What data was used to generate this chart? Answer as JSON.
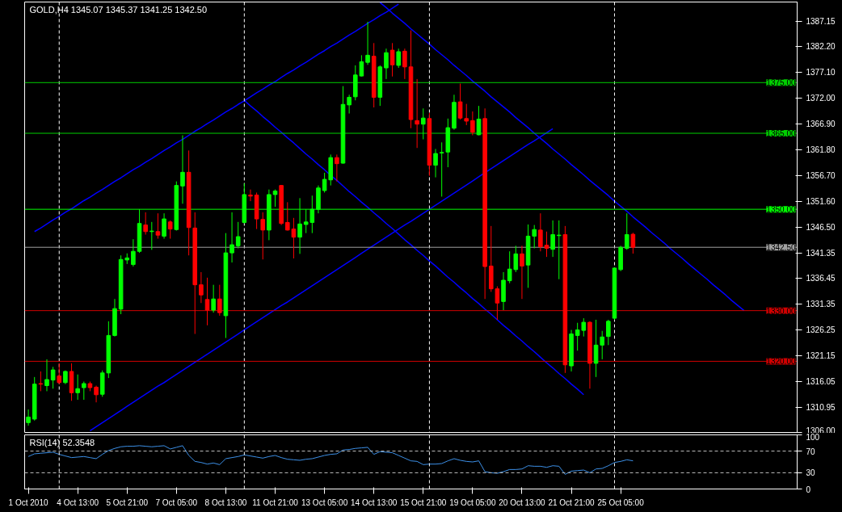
{
  "chart_data": [
    {
      "type": "candlestick",
      "title": "GOLD,H4  1345.07 1345.37 1341.25 1342.50",
      "tick_labels": "y",
      "ylim": [
        1305.8,
        1390.9
      ],
      "yticks": [
        {
          "value": 1387.15,
          "label": "1387.15"
        },
        {
          "value": 1382.2,
          "label": "1382.20"
        },
        {
          "value": 1377.1,
          "label": "1377.10"
        },
        {
          "value": 1372.0,
          "label": "1372.00"
        },
        {
          "value": 1366.9,
          "label": "1366.90"
        },
        {
          "value": 1361.8,
          "label": "1361.80"
        },
        {
          "value": 1356.7,
          "label": "1356.70"
        },
        {
          "value": 1351.6,
          "label": "1351.60"
        },
        {
          "value": 1346.5,
          "label": "1346.50"
        },
        {
          "value": 1341.35,
          "label": "1341.35"
        },
        {
          "value": 1336.45,
          "label": "1336.45"
        },
        {
          "value": 1331.35,
          "label": "1331.35"
        },
        {
          "value": 1326.25,
          "label": "1326.25"
        },
        {
          "value": 1321.15,
          "label": "1321.15"
        },
        {
          "value": 1316.05,
          "label": "1316.05"
        },
        {
          "value": 1310.95,
          "label": "1310.95"
        },
        {
          "value": 1306.0,
          "label": "1306.00"
        }
      ],
      "categories": [
        null,
        null,
        null,
        null,
        null,
        null,
        null,
        null,
        null,
        null,
        null,
        null,
        null,
        null,
        null,
        null,
        null,
        null,
        null,
        null,
        null,
        null,
        null,
        null,
        null,
        null,
        null,
        null,
        null,
        null,
        null,
        null,
        null,
        null,
        null,
        null,
        null,
        null,
        null,
        null,
        null,
        null,
        null,
        null,
        null,
        null,
        null,
        null,
        null,
        null,
        null,
        null,
        null,
        null,
        null,
        null,
        null,
        null,
        null,
        null,
        null,
        null,
        null,
        null,
        null,
        null,
        null,
        null,
        null,
        null,
        null,
        null,
        null,
        null,
        null,
        null,
        null,
        null,
        null,
        null,
        null,
        null,
        null,
        null,
        null,
        null,
        null,
        null,
        null,
        null,
        null,
        null,
        null,
        null,
        null,
        null,
        null,
        null,
        null,
        null,
        null,
        null,
        null,
        null,
        null,
        null,
        null,
        null,
        null,
        null,
        null,
        null,
        null,
        null,
        null,
        null,
        null,
        null,
        null,
        null,
        null,
        null,
        null,
        null,
        null
      ],
      "ohlc": [
        [
          1307.9,
          1310.5,
          1307.3,
          1309.0
        ],
        [
          1308.6,
          1316.9,
          1308.3,
          1315.5
        ],
        [
          1315.6,
          1318.0,
          1314.1,
          1315.5
        ],
        [
          1315.2,
          1320.4,
          1314.1,
          1316.4
        ],
        [
          1316.3,
          1318.9,
          1314.6,
          1318.3
        ],
        [
          1317.1,
          1319.6,
          1315.5,
          1315.8
        ],
        [
          1315.8,
          1318.2,
          1315.5,
          1318.0
        ],
        [
          1318.0,
          1319.6,
          1312.2,
          1313.8
        ],
        [
          1313.8,
          1317.4,
          1312.4,
          1314.6
        ],
        [
          1314.8,
          1316.0,
          1312.4,
          1315.6
        ],
        [
          1315.6,
          1316.0,
          1314.1,
          1314.8
        ],
        [
          1314.9,
          1315.2,
          1311.9,
          1313.4
        ],
        [
          1313.5,
          1318.2,
          1313.0,
          1317.7
        ],
        [
          1317.7,
          1327.9,
          1316.7,
          1325.1
        ],
        [
          1325.1,
          1332.3,
          1324.9,
          1330.4
        ],
        [
          1330.3,
          1340.9,
          1329.3,
          1340.1
        ],
        [
          1340.0,
          1341.3,
          1339.2,
          1340.4
        ],
        [
          1339.1,
          1344.1,
          1338.7,
          1341.7
        ],
        [
          1341.7,
          1350.0,
          1341.4,
          1347.2
        ],
        [
          1346.9,
          1349.4,
          1345.0,
          1345.6
        ],
        [
          1345.6,
          1347.5,
          1342.0,
          1345.7
        ],
        [
          1345.6,
          1349.2,
          1344.2,
          1344.9
        ],
        [
          1344.7,
          1349.2,
          1344.2,
          1348.1
        ],
        [
          1347.5,
          1347.8,
          1344.2,
          1346.1
        ],
        [
          1346.0,
          1355.5,
          1345.8,
          1354.7
        ],
        [
          1354.6,
          1364.6,
          1351.1,
          1357.3
        ],
        [
          1357.3,
          1361.6,
          1340.9,
          1346.4
        ],
        [
          1346.3,
          1349.4,
          1325.4,
          1335.1
        ],
        [
          1335.1,
          1337.6,
          1331.5,
          1333.1
        ],
        [
          1332.2,
          1336.5,
          1327.1,
          1330.1
        ],
        [
          1330.1,
          1335.1,
          1329.6,
          1332.3
        ],
        [
          1332.3,
          1335.1,
          1329.0,
          1329.6
        ],
        [
          1329.0,
          1345.3,
          1324.6,
          1341.4
        ],
        [
          1341.4,
          1349.4,
          1339.5,
          1343.0
        ],
        [
          1342.8,
          1347.5,
          1342.3,
          1344.6
        ],
        [
          1347.4,
          1355.1,
          1347.2,
          1352.9
        ],
        [
          1352.8,
          1353.9,
          1351.6,
          1352.6
        ],
        [
          1352.8,
          1353.3,
          1346.1,
          1348.1
        ],
        [
          1348.0,
          1349.4,
          1340.1,
          1345.9
        ],
        [
          1345.9,
          1353.9,
          1343.9,
          1352.9
        ],
        [
          1352.9,
          1353.9,
          1350.5,
          1353.6
        ],
        [
          1354.7,
          1354.8,
          1346.9,
          1347.2
        ],
        [
          1347.4,
          1351.4,
          1345.8,
          1345.9
        ],
        [
          1346.1,
          1348.3,
          1340.3,
          1344.5
        ],
        [
          1344.5,
          1352.2,
          1341.2,
          1347.1
        ],
        [
          1347.0,
          1350.0,
          1345.3,
          1347.5
        ],
        [
          1347.4,
          1352.7,
          1345.3,
          1350.0
        ],
        [
          1350.0,
          1354.7,
          1349.2,
          1354.2
        ],
        [
          1353.7,
          1357.2,
          1353.3,
          1355.9
        ],
        [
          1355.8,
          1360.8,
          1354.7,
          1360.2
        ],
        [
          1360.2,
          1360.8,
          1355.5,
          1359.0
        ],
        [
          1359.1,
          1374.3,
          1359.0,
          1370.7
        ],
        [
          1370.6,
          1372.6,
          1368.9,
          1372.1
        ],
        [
          1372.2,
          1378.4,
          1371.5,
          1376.5
        ],
        [
          1376.3,
          1380.4,
          1376.2,
          1379.1
        ],
        [
          1379.0,
          1387.0,
          1378.5,
          1380.4
        ],
        [
          1380.2,
          1382.8,
          1370.1,
          1372.1
        ],
        [
          1372.1,
          1378.4,
          1370.4,
          1378.1
        ],
        [
          1377.9,
          1381.7,
          1375.7,
          1380.9
        ],
        [
          1381.4,
          1382.8,
          1376.2,
          1378.5
        ],
        [
          1378.4,
          1381.7,
          1377.9,
          1381.1
        ],
        [
          1381.2,
          1381.7,
          1375.7,
          1378.1
        ],
        [
          1378.1,
          1385.3,
          1366.0,
          1367.7
        ],
        [
          1367.5,
          1375.7,
          1362.1,
          1366.8
        ],
        [
          1366.8,
          1369.9,
          1363.8,
          1368.0
        ],
        [
          1367.9,
          1369.0,
          1356.6,
          1358.7
        ],
        [
          1358.7,
          1361.9,
          1356.3,
          1361.0
        ],
        [
          1361.1,
          1363.2,
          1352.5,
          1361.2
        ],
        [
          1361.3,
          1367.9,
          1358.3,
          1366.1
        ],
        [
          1366.0,
          1372.6,
          1365.7,
          1371.1
        ],
        [
          1371.2,
          1374.8,
          1367.7,
          1368.0
        ],
        [
          1367.9,
          1370.8,
          1366.6,
          1367.4
        ],
        [
          1367.5,
          1369.3,
          1364.6,
          1365.2
        ],
        [
          1364.7,
          1370.4,
          1364.6,
          1367.8
        ],
        [
          1367.9,
          1369.9,
          1332.3,
          1338.7
        ],
        [
          1338.8,
          1346.7,
          1333.7,
          1334.3
        ],
        [
          1334.3,
          1334.8,
          1328.2,
          1331.5
        ],
        [
          1331.8,
          1337.6,
          1330.1,
          1336.0
        ],
        [
          1335.9,
          1341.7,
          1335.4,
          1338.2
        ],
        [
          1338.1,
          1342.8,
          1337.6,
          1341.2
        ],
        [
          1341.2,
          1342.8,
          1332.3,
          1338.8
        ],
        [
          1339.0,
          1347.0,
          1334.5,
          1344.7
        ],
        [
          1344.7,
          1346.9,
          1342.3,
          1346.0
        ],
        [
          1345.9,
          1349.2,
          1341.7,
          1342.6
        ],
        [
          1342.9,
          1345.6,
          1340.6,
          1342.3
        ],
        [
          1342.1,
          1347.8,
          1340.6,
          1345.0
        ],
        [
          1344.8,
          1347.8,
          1336.2,
          1344.9
        ],
        [
          1345.0,
          1346.7,
          1317.7,
          1319.3
        ],
        [
          1319.1,
          1326.2,
          1318.0,
          1325.4
        ],
        [
          1325.1,
          1327.6,
          1322.1,
          1326.2
        ],
        [
          1326.1,
          1328.5,
          1324.9,
          1327.7
        ],
        [
          1327.7,
          1327.9,
          1314.6,
          1319.6
        ],
        [
          1319.6,
          1328.2,
          1316.9,
          1323.2
        ],
        [
          1323.2,
          1326.0,
          1320.4,
          1324.8
        ],
        [
          1324.9,
          1328.2,
          1323.2,
          1327.9
        ],
        [
          1328.5,
          1338.4,
          1328.2,
          1338.4
        ],
        [
          1338.1,
          1342.8,
          1337.8,
          1342.5
        ],
        [
          1342.3,
          1349.2,
          1342.0,
          1345.0
        ],
        [
          1345.07,
          1345.37,
          1341.25,
          1342.5
        ],
        null,
        null,
        null,
        null,
        null,
        null,
        null,
        null,
        null,
        null,
        null,
        null,
        null,
        null,
        null,
        null,
        null,
        null,
        null,
        null,
        null,
        null,
        null,
        null,
        null,
        null
      ],
      "colors": [
        "#00ff00",
        "#00ff00",
        "#ff0000",
        "#00ff00",
        "#00ff00",
        "#ff0000",
        "#00ff00",
        "#ff0000",
        "#00ff00",
        "#00ff00",
        "#ff0000",
        "#ff0000",
        "#00ff00",
        "#00ff00",
        "#00ff00",
        "#00ff00",
        "#00ff00",
        "#00ff00",
        "#00ff00",
        "#ff0000",
        "#00ff00",
        "#ff0000",
        "#00ff00",
        "#ff0000",
        "#00ff00",
        "#00ff00",
        "#ff0000",
        "#ff0000",
        "#ff0000",
        "#ff0000",
        "#00ff00",
        "#ff0000",
        "#00ff00",
        "#00ff00",
        "#00ff00",
        "#00ff00",
        "#ff0000",
        "#ff0000",
        "#ff0000",
        "#00ff00",
        "#00ff00",
        "#ff0000",
        "#ff0000",
        "#ff0000",
        "#00ff00",
        "#00ff00",
        "#00ff00",
        "#00ff00",
        "#00ff00",
        "#00ff00",
        "#ff0000",
        "#00ff00",
        "#00ff00",
        "#00ff00",
        "#00ff00",
        "#00ff00",
        "#ff0000",
        "#00ff00",
        "#00ff00",
        "#ff0000",
        "#00ff00",
        "#ff0000",
        "#ff0000",
        "#ff0000",
        "#00ff00",
        "#ff0000",
        "#00ff00",
        "#00ff00",
        "#00ff00",
        "#00ff00",
        "#ff0000",
        "#ff0000",
        "#ff0000",
        "#00ff00",
        "#ff0000",
        "#ff0000",
        "#ff0000",
        "#00ff00",
        "#00ff00",
        "#00ff00",
        "#ff0000",
        "#00ff00",
        "#00ff00",
        "#ff0000",
        "#ff0000",
        "#00ff00",
        "#00ff00",
        "#ff0000",
        "#00ff00",
        "#00ff00",
        "#00ff00",
        "#ff0000",
        "#00ff00",
        "#00ff00",
        "#00ff00",
        "#00ff00",
        "#00ff00",
        "#00ff00",
        "#ff0000",
        null,
        null,
        null,
        null,
        null,
        null,
        null,
        null,
        null,
        null,
        null,
        null,
        null,
        null,
        null,
        null,
        null,
        null,
        null,
        null,
        null,
        null,
        null,
        null,
        null,
        null
      ],
      "series": [
        {
          "type": "line",
          "color": "#0000ff",
          "values": [
            null,
            1345.6,
            1346.3,
            1347.1,
            1347.9,
            1348.6,
            1349.4,
            1350.1,
            1350.9,
            1351.7,
            1352.4,
            1353.2,
            1353.9,
            1354.7,
            1355.5,
            1356.2,
            1357.0,
            1357.8,
            1358.5,
            1359.3,
            1360.0,
            1360.8,
            1361.6,
            1362.3,
            1363.1,
            1363.8,
            1364.6,
            1365.4,
            1366.1,
            1366.9,
            1367.6,
            1368.4,
            1369.2,
            1369.9,
            1370.7,
            1371.4,
            1372.2,
            1373.0,
            1373.7,
            1374.5,
            1375.2,
            1376.0,
            1376.8,
            1377.5,
            1378.3,
            1379.0,
            1379.8,
            1380.6,
            1381.3,
            1382.1,
            1382.8,
            1383.6,
            1384.4,
            1385.1,
            1385.9,
            1386.7,
            1387.4,
            1388.2,
            1388.9,
            1389.7,
            1390.5,
            null,
            null,
            null,
            null,
            null,
            null,
            null,
            null,
            null,
            null,
            null,
            null,
            null,
            null,
            null,
            null,
            null,
            null,
            null,
            null,
            null,
            null,
            null,
            null,
            null,
            null,
            null,
            null,
            null,
            null,
            null,
            null,
            null,
            null,
            null,
            null,
            null,
            null,
            null,
            null,
            null,
            null,
            null,
            null,
            null,
            null,
            null,
            null,
            null,
            null,
            null,
            null,
            null,
            null,
            null,
            null,
            null,
            null,
            null,
            null,
            null,
            null,
            null,
            null
          ]
        },
        {
          "type": "line",
          "color": "#0000ff",
          "values": [
            null,
            null,
            null,
            null,
            null,
            null,
            null,
            null,
            null,
            null,
            1306.3,
            1307.1,
            1307.9,
            1308.7,
            1309.5,
            1310.3,
            1311.1,
            1311.9,
            1312.7,
            1313.5,
            1314.3,
            1315.1,
            1315.8,
            1316.6,
            1317.4,
            1318.2,
            1319.0,
            1319.8,
            1320.6,
            1321.4,
            1322.2,
            1323.0,
            1323.8,
            1324.6,
            1325.4,
            1326.2,
            1327.0,
            1327.8,
            1328.6,
            1329.4,
            1330.2,
            1331.0,
            1331.7,
            1332.5,
            1333.3,
            1334.1,
            1334.9,
            1335.7,
            1336.5,
            1337.3,
            1338.1,
            1338.9,
            1339.7,
            1340.5,
            1341.3,
            1342.1,
            1342.9,
            1343.7,
            1344.5,
            1345.3,
            1346.1,
            1346.9,
            1347.6,
            1348.4,
            1349.2,
            1350.0,
            1350.8,
            1351.6,
            1352.4,
            1353.2,
            1354.0,
            1354.8,
            1355.6,
            1356.4,
            1357.2,
            1358.0,
            1358.8,
            1359.6,
            1360.4,
            1361.2,
            1362.0,
            1362.8,
            1363.5,
            1364.3,
            1365.1,
            1365.9,
            null,
            null,
            null,
            null,
            null,
            null,
            null,
            null,
            null,
            null,
            null,
            null,
            null,
            null,
            null,
            null,
            null,
            null,
            null,
            null,
            null,
            null,
            null,
            null,
            null,
            null,
            null,
            null,
            null,
            null,
            null,
            null,
            null,
            null,
            null,
            null,
            null,
            null,
            null
          ]
        },
        {
          "type": "line",
          "color": "#0000ff",
          "values": [
            null,
            null,
            null,
            null,
            null,
            null,
            null,
            null,
            null,
            null,
            null,
            null,
            null,
            null,
            null,
            null,
            null,
            null,
            null,
            null,
            null,
            null,
            null,
            null,
            null,
            null,
            null,
            null,
            null,
            null,
            null,
            null,
            null,
            null,
            null,
            1371.5,
            1370.4,
            1369.4,
            1368.3,
            1367.3,
            1366.2,
            1365.2,
            1364.1,
            1363.1,
            1362.0,
            1360.9,
            1359.9,
            1358.8,
            1357.8,
            1356.7,
            1355.7,
            1354.6,
            1353.5,
            1352.5,
            1351.4,
            1350.4,
            1349.3,
            1348.3,
            1347.2,
            1346.2,
            1345.1,
            1344.0,
            1343.0,
            1341.9,
            1340.9,
            1339.8,
            1338.8,
            1337.7,
            1336.6,
            1335.6,
            1334.5,
            1333.5,
            1332.4,
            1331.4,
            1330.3,
            1329.3,
            1328.2,
            1327.1,
            1326.1,
            1325.0,
            1324.0,
            1322.9,
            1321.9,
            1320.8,
            1319.7,
            1318.7,
            1317.6,
            1316.6,
            1315.5,
            1314.5,
            1313.4,
            null,
            null,
            null,
            null,
            null,
            null,
            null,
            null,
            null,
            null,
            null,
            null,
            null,
            null,
            null,
            null,
            null,
            null,
            null,
            null,
            null,
            null,
            null,
            null,
            null,
            null,
            null,
            null,
            null,
            null,
            null,
            null,
            null,
            null
          ]
        },
        {
          "type": "line",
          "color": "#0000ff",
          "values": [
            null,
            null,
            null,
            null,
            null,
            null,
            null,
            null,
            null,
            null,
            null,
            null,
            null,
            null,
            null,
            null,
            null,
            null,
            null,
            null,
            null,
            null,
            null,
            null,
            null,
            null,
            null,
            null,
            null,
            null,
            null,
            null,
            null,
            null,
            null,
            null,
            null,
            null,
            null,
            null,
            null,
            null,
            null,
            null,
            null,
            null,
            null,
            null,
            null,
            null,
            null,
            null,
            null,
            null,
            null,
            null,
            null,
            1390.8,
            1389.8,
            1388.7,
            1387.7,
            1386.7,
            1385.6,
            1384.6,
            1383.6,
            1382.6,
            1381.5,
            1380.5,
            1379.5,
            1378.4,
            1377.4,
            1376.4,
            1375.3,
            1374.3,
            1373.3,
            1372.2,
            1371.2,
            1370.2,
            1369.2,
            1368.1,
            1367.1,
            1366.1,
            1365.0,
            1364.0,
            1363.0,
            1361.9,
            1360.9,
            1359.9,
            1358.8,
            1357.8,
            1356.8,
            1355.7,
            1354.7,
            1353.7,
            1352.7,
            1351.6,
            1350.6,
            1349.6,
            1348.5,
            1347.5,
            1346.5,
            1345.4,
            1344.4,
            1343.4,
            1342.3,
            1341.3,
            1340.3,
            1339.2,
            1338.2,
            1337.2,
            1336.2,
            1335.1,
            1334.1,
            1333.1,
            1332.0,
            1331.0,
            1330.0,
            null,
            null,
            null,
            null,
            null,
            null,
            null,
            null
          ]
        }
      ],
      "ref_lines": [
        {
          "axis": "y",
          "value": 1375,
          "label": "1375.00",
          "color": "#00d000"
        },
        {
          "axis": "y",
          "value": 1365,
          "label": "1365.00",
          "color": "#00d000"
        },
        {
          "axis": "y",
          "value": 1350,
          "label": "1350.00",
          "color": "#00ff00"
        },
        {
          "axis": "y",
          "value": 1342.5,
          "label": "1342.50",
          "color": "#a0a0a0"
        },
        {
          "axis": "y",
          "value": 1330,
          "label": "1330.00",
          "color": "#d00000"
        },
        {
          "axis": "y",
          "value": 1320,
          "label": "1320.00",
          "color": "#d00000"
        }
      ]
    },
    {
      "type": "line",
      "title": "RSI(14) 52.3548",
      "ylim": [
        0,
        100
      ],
      "yticks": [
        0,
        30,
        70,
        100
      ],
      "categories": [
        "1 Oct 2010",
        null,
        null,
        null,
        null,
        null,
        null,
        null,
        "4 Oct 13:00",
        null,
        null,
        null,
        null,
        null,
        null,
        null,
        "5 Oct 21:00",
        null,
        null,
        null,
        null,
        null,
        null,
        null,
        "7 Oct 05:00",
        null,
        null,
        null,
        null,
        null,
        null,
        null,
        "8 Oct 13:00",
        null,
        null,
        null,
        null,
        null,
        null,
        null,
        "11 Oct 21:00",
        null,
        null,
        null,
        null,
        null,
        null,
        null,
        "13 Oct 05:00",
        null,
        null,
        null,
        null,
        null,
        null,
        null,
        "14 Oct 13:00",
        null,
        null,
        null,
        null,
        null,
        null,
        null,
        "15 Oct 21:00",
        null,
        null,
        null,
        null,
        null,
        null,
        null,
        "19 Oct 05:00",
        null,
        null,
        null,
        null,
        null,
        null,
        null,
        "20 Oct 13:00",
        null,
        null,
        null,
        null,
        null,
        null,
        null,
        "21 Oct 21:00",
        null,
        null,
        null,
        null,
        null,
        null,
        null,
        "25 Oct 05:00",
        null,
        null,
        null,
        null,
        null,
        null,
        null,
        null,
        null,
        null,
        null,
        null,
        null,
        null,
        null,
        null,
        null,
        null,
        null,
        null,
        null,
        null,
        null,
        null,
        null,
        null,
        null,
        null
      ],
      "series": [
        {
          "color": "#3c8fe6",
          "values": [
            60,
            65,
            66,
            67,
            68,
            64,
            61,
            58,
            59,
            60,
            58,
            56,
            64,
            71,
            75,
            78,
            79,
            79,
            80,
            79,
            78,
            79,
            80,
            74,
            77,
            80,
            62,
            51,
            49,
            46,
            48,
            45,
            56,
            58,
            60,
            63,
            61,
            59,
            57,
            60,
            62,
            58,
            55,
            54,
            53,
            55,
            56,
            59,
            62,
            64,
            65,
            72,
            73,
            75,
            76,
            77,
            64,
            69,
            68,
            67,
            62,
            57,
            52,
            51,
            45,
            46,
            46,
            47,
            52,
            56,
            53,
            51,
            50,
            52,
            32,
            30,
            29,
            32,
            36,
            36,
            37,
            43,
            42,
            42,
            40,
            43,
            42,
            27,
            33,
            34,
            35,
            30,
            37,
            38,
            43,
            49,
            51,
            54,
            52,
            null,
            null,
            null,
            null,
            null,
            null,
            null,
            null,
            null,
            null,
            null,
            null,
            null,
            null,
            null,
            null,
            null,
            null,
            null,
            null,
            null,
            null,
            null,
            null,
            null,
            null
          ]
        }
      ],
      "ref_lines": [
        {
          "axis": "y",
          "value": 70,
          "color": "#c0c0c0",
          "line_style": "dashed"
        },
        {
          "axis": "y",
          "value": 30,
          "color": "#c0c0c0",
          "line_style": "dashed"
        }
      ]
    }
  ]
}
